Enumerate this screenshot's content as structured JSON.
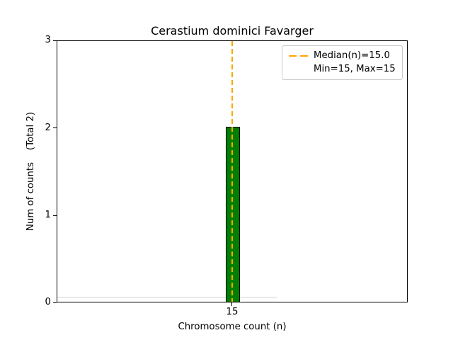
{
  "figure": {
    "title": "Cerastium dominici Favarger",
    "xlabel": "Chromosome count (n)",
    "ylabel": "Num of counts    (Total 2)",
    "yticks": [
      "3",
      "2",
      "1",
      "0"
    ],
    "xtick": "15",
    "legend": {
      "line1": "Median(n)=15.0",
      "line2": "Min=15, Max=15"
    },
    "colors": {
      "bar_fill": "#008000",
      "bar_edge": "#000000",
      "median_line": "#FFA500",
      "baseline_artifact": "#D3D3D3",
      "axis": "#000000",
      "background": "#FFFFFF"
    }
  },
  "chart_data": {
    "type": "bar",
    "categories": [
      15
    ],
    "values": [
      2
    ],
    "title": "Cerastium dominici Favarger",
    "xlabel": "Chromosome count (n)",
    "ylabel": "Num of counts (Total 2)",
    "ylim": [
      0,
      3
    ],
    "yticks": [
      0,
      1,
      2,
      3
    ],
    "xticks": [
      15
    ],
    "total_counts": 2,
    "median_n": 15.0,
    "min_n": 15,
    "max_n": 15,
    "legend_entries": [
      "Median(n)=15.0",
      "Min=15, Max=15"
    ],
    "legend_position": "upper right",
    "grid": false,
    "bar_color": "#008000",
    "bar_edge_color": "#000000",
    "median_line_color": "#FFA500",
    "median_line_style": "dashed"
  }
}
